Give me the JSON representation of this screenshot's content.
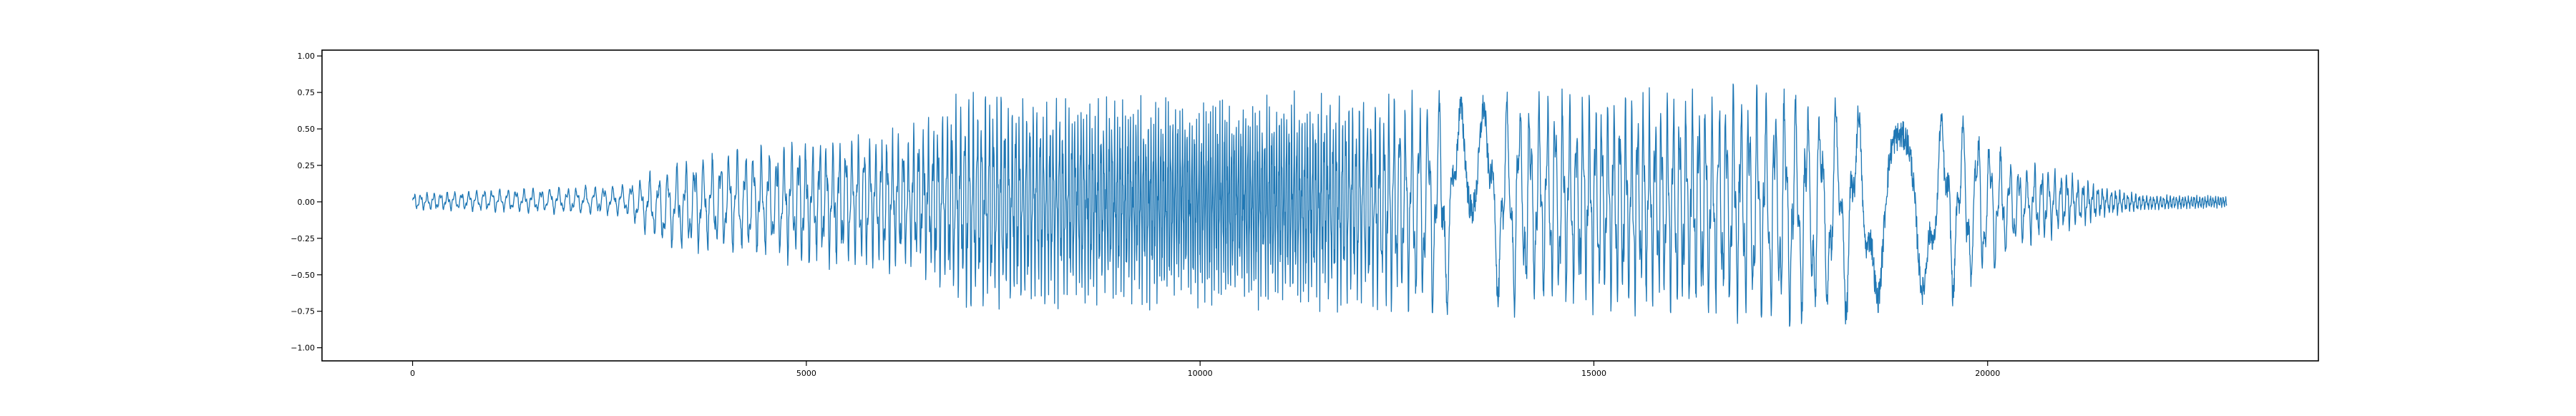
{
  "chart_data": {
    "type": "line",
    "title": "",
    "xlabel": "",
    "ylabel": "",
    "xlim": [
      -1150,
      24200
    ],
    "ylim": [
      -1.09,
      1.04
    ],
    "x_ticks": [
      0,
      5000,
      10000,
      15000,
      20000
    ],
    "x_tick_labels": [
      "0",
      "5000",
      "10000",
      "15000",
      "20000"
    ],
    "y_ticks": [
      1.0,
      0.75,
      0.5,
      0.25,
      0.0,
      -0.25,
      -0.5,
      -0.75,
      -1.0
    ],
    "y_tick_labels": [
      "1.00",
      "0.75",
      "0.50",
      "0.25",
      "0.00",
      "−0.25",
      "−0.50",
      "−0.75",
      "−1.00"
    ],
    "grid": false,
    "legend": "none",
    "series": [
      {
        "color": "#1f77b4",
        "sample_count": 23040,
        "envelope_x": [
          0,
          1000,
          2000,
          2700,
          3200,
          4000,
          5000,
          6000,
          6500,
          7000,
          8000,
          9000,
          10000,
          11000,
          12000,
          13000,
          14000,
          15000,
          16000,
          16800,
          17500,
          18000,
          19000,
          19800,
          20300,
          21000,
          21500,
          22000,
          23040
        ],
        "envelope_max": [
          0.07,
          0.1,
          0.12,
          0.14,
          0.3,
          0.42,
          0.5,
          0.56,
          0.62,
          0.9,
          0.85,
          0.82,
          0.83,
          0.85,
          0.87,
          0.86,
          0.88,
          0.88,
          0.87,
          0.92,
          0.93,
          0.85,
          0.82,
          0.7,
          0.35,
          0.25,
          0.12,
          0.06,
          0.05
        ],
        "envelope_min": [
          -0.07,
          -0.08,
          -0.1,
          -0.12,
          -0.38,
          -0.42,
          -0.5,
          -0.55,
          -0.6,
          -0.9,
          -0.85,
          -0.82,
          -0.83,
          -0.85,
          -0.87,
          -0.9,
          -0.88,
          -0.86,
          -0.9,
          -0.95,
          -1.0,
          -0.98,
          -0.87,
          -0.75,
          -0.4,
          -0.25,
          -0.12,
          -0.07,
          -0.05
        ]
      }
    ]
  }
}
